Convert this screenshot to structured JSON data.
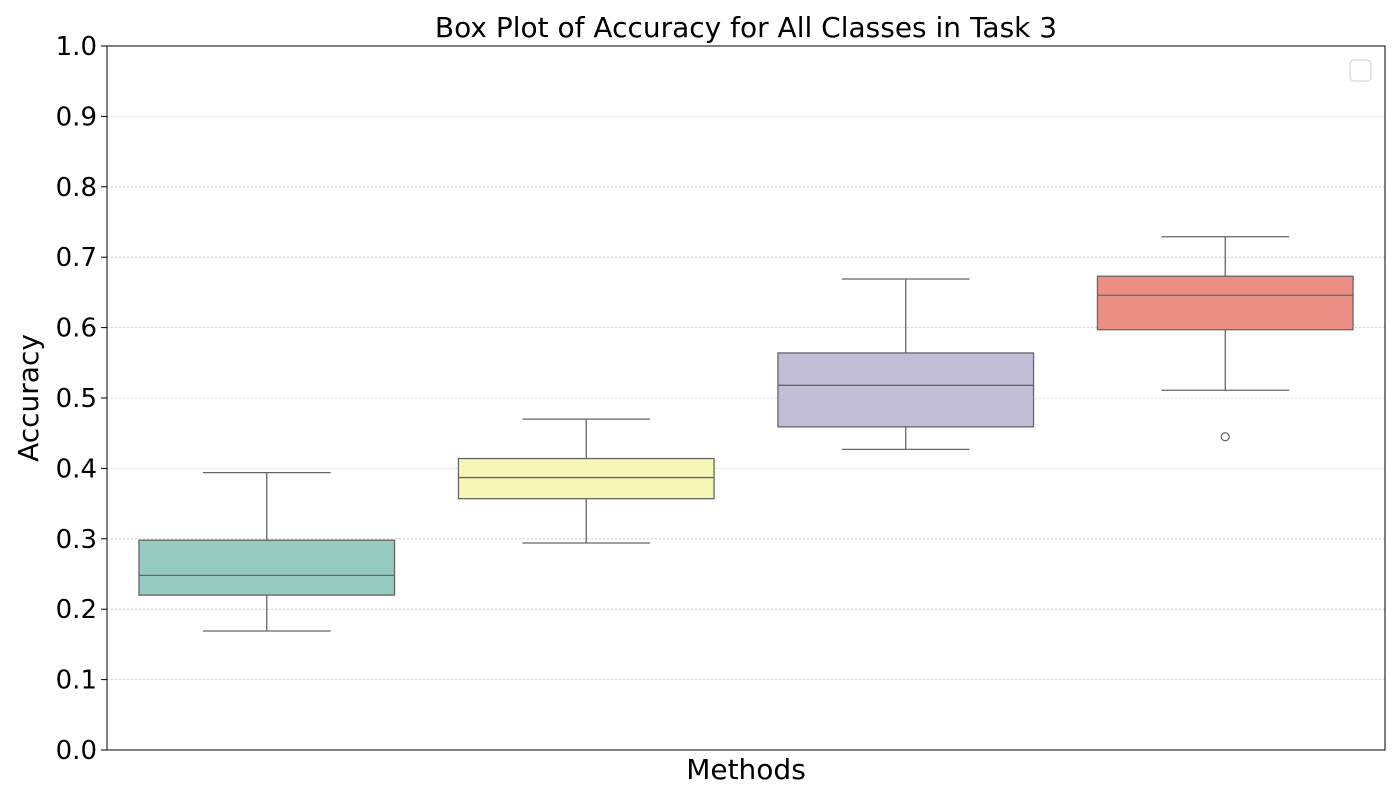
{
  "chart_data": {
    "type": "box",
    "title": "Box Plot of Accuracy for All Classes in Task 3",
    "xlabel": "Methods",
    "ylabel": "Accuracy",
    "ylim": [
      0.0,
      1.0
    ],
    "yticks": [
      "0.0",
      "0.1",
      "0.2",
      "0.3",
      "0.4",
      "0.5",
      "0.6",
      "0.7",
      "0.8",
      "0.9",
      "1.0"
    ],
    "grid": "horizontal-dotted",
    "legend": "top-right, empty",
    "box_edge_color": "#666666",
    "boxes": [
      {
        "whisker_low": 0.169,
        "q1": 0.22,
        "median": 0.248,
        "q3": 0.298,
        "whisker_high": 0.394,
        "outliers": [],
        "color": "#96c9bf"
      },
      {
        "whisker_low": 0.294,
        "q1": 0.357,
        "median": 0.387,
        "q3": 0.414,
        "whisker_high": 0.47,
        "outliers": [],
        "color": "#f6f6b7"
      },
      {
        "whisker_low": 0.427,
        "q1": 0.459,
        "median": 0.518,
        "q3": 0.564,
        "whisker_high": 0.669,
        "outliers": [],
        "color": "#c2bdd6"
      },
      {
        "whisker_low": 0.511,
        "q1": 0.597,
        "median": 0.646,
        "q3": 0.673,
        "whisker_high": 0.729,
        "outliers": [
          0.445
        ],
        "color": "#eb8f84"
      }
    ]
  }
}
